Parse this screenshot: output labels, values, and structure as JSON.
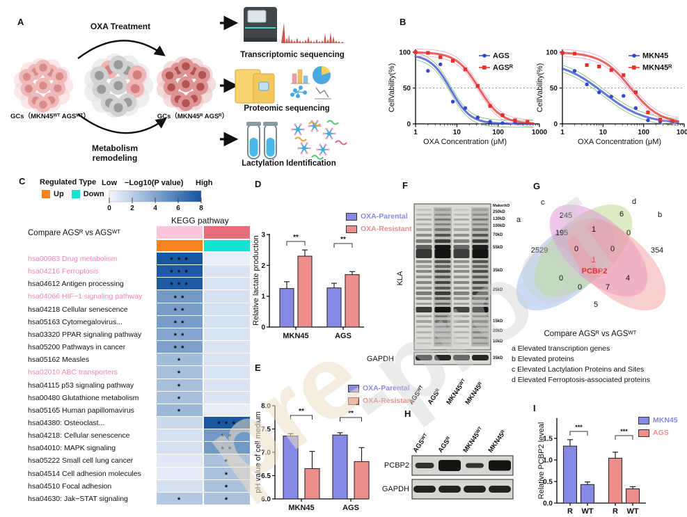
{
  "watermark": {
    "part1": "pre",
    "part2": "-proof"
  },
  "colors": {
    "parental_fill": "#8789e6",
    "resistant_fill": "#ee8e8c",
    "bar_border": "#2a2a2a",
    "blue_series": "#3347cf",
    "red_series": "#e62f2b",
    "blue_band": "#6fbf73",
    "red_band": "#f2a3cf",
    "pink_label": "#f685b9",
    "up_orange": "#f8831f",
    "down_cyan": "#17e2d2",
    "heat_low": "#f4f7fd",
    "heat_high": "#13539f",
    "header_pink": "#f9c6dc",
    "header_rose": "#e66d79",
    "venn_a": "#9bb9ee",
    "venn_b": "#f19d9d",
    "venn_c": "#bcd889",
    "venn_d": "#dd8fd6",
    "venn_center_red": "#e62f2b"
  },
  "panel_a": {
    "label": "A",
    "oxa": "OXA Treatment",
    "metabolism": "Metabolism remodeling",
    "gcs_wt": "GCs（MKN45ᵂᵀ AGSᵂᵀ）",
    "gcs_r": "GCs（MKN45ᴿ AGSᴿ）",
    "transcriptomic": "Transcriptomic sequencing",
    "proteomic": "Proteomic sequencing",
    "lactylation": "Lactylation Identification"
  },
  "panel_b": {
    "label": "B"
  },
  "panel_c": {
    "label": "C",
    "regulated_type": "Regulated Type",
    "up": "Up",
    "down": "Down",
    "low": "Low",
    "scale_label": "−Log10(P value)",
    "high": "High",
    "scale_ticks": [
      "0",
      "2",
      "4",
      "6",
      "8"
    ],
    "kegg_title": "KEGG pathway",
    "compare": "Compare AGSᴿ vs AGSᵂᵀ"
  },
  "panel_d": {
    "label": "D"
  },
  "panel_e": {
    "label": "E"
  },
  "panel_f": {
    "label": "F",
    "protein": "KLA",
    "loading": "GAPDH",
    "marker_header": "Maker/kD",
    "markers": [
      "250kD",
      "130kD",
      "100kD",
      "70kD",
      "55kD",
      "35kD",
      "25kD",
      "15kD",
      "20kD",
      "10kD"
    ],
    "loading_marker": "35kD",
    "lanes": [
      "AGSᵂᵀ",
      "AGSᴿ",
      "MKN45ᵂᵀ",
      "MKN45ᴿ"
    ]
  },
  "panel_g": {
    "label": "G",
    "sets": {
      "a": "a",
      "b": "b",
      "c": "c",
      "d": "d"
    },
    "compare": "Compare AGSᴿ vs AGSᵂᵀ",
    "legend": [
      "a  Elevated transcription genes",
      "b  Elevated proteins",
      "c  Elevated Lactylation Proteins and Sites",
      "d  Elevated Ferroptosis-associated proteins"
    ]
  },
  "panel_h": {
    "label": "H",
    "protein": "PCBP2",
    "loading": "GAPDH",
    "lanes": [
      "AGSᵂᵀ",
      "AGSᴿ",
      "MKN45ᵂᵀ",
      "MKN45ᴿ"
    ]
  },
  "panel_i": {
    "label": "I"
  },
  "chart_data": {
    "ags_viability": {
      "type": "scatter",
      "xlabel": "OXA Concentration (μM)",
      "ylabel": "CellVability(%)",
      "xscale": "log",
      "xlim": [
        1,
        1000
      ],
      "ylim": [
        0,
        100
      ],
      "yticks": [
        0,
        50,
        100
      ],
      "xticks": [
        1,
        10,
        100,
        1000
      ],
      "refline_y": 50,
      "series": [
        {
          "name": "AGS",
          "marker": "circle",
          "ic50": 7,
          "hill": 1.8,
          "top": 97,
          "bottom": 0,
          "points": [
            [
              1,
              100
            ],
            [
              2,
              74
            ],
            [
              4,
              83
            ],
            [
              8,
              31
            ],
            [
              16,
              22
            ],
            [
              32,
              9
            ],
            [
              64,
              3
            ],
            [
              128,
              1
            ],
            [
              256,
              1
            ],
            [
              512,
              2
            ]
          ]
        },
        {
          "name": "AGSᴿ",
          "marker": "square",
          "ic50": 34,
          "hill": 1.6,
          "top": 100,
          "bottom": 0,
          "points": [
            [
              1,
              100
            ],
            [
              2,
              99
            ],
            [
              4,
              93
            ],
            [
              8,
              88
            ],
            [
              16,
              76
            ],
            [
              32,
              53
            ],
            [
              64,
              25
            ],
            [
              128,
              12
            ],
            [
              256,
              5
            ],
            [
              512,
              3
            ]
          ]
        }
      ]
    },
    "mkn45_viability": {
      "type": "scatter",
      "xlabel": "OXA Concentration (μM)",
      "ylabel": "CellVability(%)",
      "xscale": "log",
      "xlim": [
        1,
        1000
      ],
      "ylim": [
        0,
        100
      ],
      "yticks": [
        0,
        50,
        100
      ],
      "xticks": [
        1,
        10,
        100,
        1000
      ],
      "refline_y": 50,
      "series": [
        {
          "name": "MKN45",
          "marker": "circle",
          "ic50": 10,
          "hill": 0.85,
          "top": 88,
          "bottom": 0,
          "points": [
            [
              1,
              99
            ],
            [
              2,
              74
            ],
            [
              4,
              55
            ],
            [
              8,
              44
            ],
            [
              16,
              38
            ],
            [
              32,
              39
            ],
            [
              64,
              22
            ],
            [
              128,
              5
            ],
            [
              256,
              3
            ],
            [
              512,
              2
            ]
          ]
        },
        {
          "name": "MKN45ᴿ",
          "marker": "square",
          "ic50": 48,
          "hill": 1.2,
          "top": 100,
          "bottom": 0,
          "points": [
            [
              1,
              99
            ],
            [
              2,
              98
            ],
            [
              4,
              82
            ],
            [
              8,
              80
            ],
            [
              16,
              75
            ],
            [
              32,
              68
            ],
            [
              64,
              44
            ],
            [
              128,
              16
            ],
            [
              256,
              6
            ],
            [
              512,
              4
            ]
          ]
        }
      ]
    },
    "lactate": {
      "type": "bar",
      "ylabel": "Relative lactate production",
      "ylim": [
        0,
        3
      ],
      "yticks": [
        0,
        1,
        2,
        3
      ],
      "groups": [
        "MKN45",
        "AGS"
      ],
      "series": [
        {
          "name": "OXA-Parental",
          "values": [
            1.25,
            1.27
          ],
          "errors": [
            0.22,
            0.15
          ]
        },
        {
          "name": "OXA-Resistant",
          "values": [
            2.3,
            1.7
          ],
          "errors": [
            0.2,
            0.1
          ]
        }
      ],
      "significance": [
        "**",
        "**"
      ]
    },
    "ph_medium": {
      "type": "bar",
      "ylabel": "pH value of cell medium",
      "ylim": [
        6.0,
        8.0
      ],
      "yticks": [
        6.0,
        6.5,
        7.0,
        7.5,
        8.0
      ],
      "groups": [
        "MKN45",
        "AGS"
      ],
      "series": [
        {
          "name": "OXA-Parental",
          "values": [
            7.35,
            7.37
          ],
          "errors": [
            0.05,
            0.05
          ]
        },
        {
          "name": "OXA-Resistant",
          "values": [
            6.65,
            6.8
          ],
          "errors": [
            0.37,
            0.3
          ]
        }
      ],
      "significance": [
        "**",
        "**"
      ]
    },
    "pcbp2_level": {
      "type": "bar",
      "ylabel": "Relative PCBP2 leveal",
      "ylim": [
        0,
        1.78
      ],
      "yticks": [
        0.0,
        0.5,
        1.0,
        1.5
      ],
      "categories": [
        "R",
        "WT",
        "R",
        "WT"
      ],
      "values": [
        1.32,
        0.43,
        1.04,
        0.33
      ],
      "errors": [
        0.15,
        0.06,
        0.14,
        0.05
      ],
      "legend": [
        {
          "label": "MKN45"
        },
        {
          "label": "AGS"
        }
      ],
      "significance": [
        {
          "pair": [
            0,
            1
          ],
          "stars": "***"
        },
        {
          "pair": [
            2,
            3
          ],
          "stars": "***"
        }
      ]
    },
    "kegg_heatmap": {
      "type": "heatmap",
      "scale_range": [
        0,
        8
      ],
      "rows": [
        {
          "label": "hsa00983 Drug metabolism",
          "pink": true,
          "values": [
            7.8,
            0.4
          ],
          "stars": [
            "***",
            ""
          ]
        },
        {
          "label": "hsa04216 Ferroptosis",
          "pink": true,
          "values": [
            7.6,
            0.9
          ],
          "stars": [
            "***",
            ""
          ]
        },
        {
          "label": "hsa04612 Antigen processing",
          "pink": false,
          "values": [
            7.6,
            0.9
          ],
          "stars": [
            "***",
            ""
          ]
        },
        {
          "label": "hsa04066 HIF−1 signaling pathway",
          "pink": true,
          "values": [
            4.6,
            1.1
          ],
          "stars": [
            "**",
            ""
          ]
        },
        {
          "label": "hsa04218 Cellular senescence",
          "pink": false,
          "values": [
            4.4,
            1.1
          ],
          "stars": [
            "**",
            ""
          ]
        },
        {
          "label": "hsa05163 Cytomegalovirus...",
          "pink": false,
          "values": [
            4.4,
            1.1
          ],
          "stars": [
            "**",
            ""
          ]
        },
        {
          "label": "hsa03320 PPAR signaling pathway",
          "pink": false,
          "values": [
            4.0,
            0.9
          ],
          "stars": [
            "**",
            ""
          ]
        },
        {
          "label": "hsa05200 Pathways in cancer",
          "pink": false,
          "values": [
            4.2,
            0.9
          ],
          "stars": [
            "**",
            ""
          ]
        },
        {
          "label": "hsa05162 Measles",
          "pink": false,
          "values": [
            2.9,
            0.9
          ],
          "stars": [
            "*",
            ""
          ]
        },
        {
          "label": "hsa02010 ABC transporters",
          "pink": true,
          "values": [
            2.7,
            0.9
          ],
          "stars": [
            "*",
            ""
          ]
        },
        {
          "label": "hsa04115 p53 signaling pathway",
          "pink": false,
          "values": [
            2.7,
            0.9
          ],
          "stars": [
            "*",
            ""
          ]
        },
        {
          "label": "hsa00480 Glutathione metabolism",
          "pink": false,
          "values": [
            2.7,
            0.9
          ],
          "stars": [
            "*",
            ""
          ]
        },
        {
          "label": "hsa05165 Human papillomavirus",
          "pink": false,
          "values": [
            3.1,
            0.5
          ],
          "stars": [
            "*",
            ""
          ]
        },
        {
          "label": "hsa04380: Osteoclast...",
          "pink": false,
          "values": [
            1.4,
            7.8
          ],
          "stars": [
            "",
            "***"
          ]
        },
        {
          "label": "hsa04218: Cellular senescence",
          "pink": false,
          "values": [
            1.1,
            4.6
          ],
          "stars": [
            "",
            "**"
          ]
        },
        {
          "label": "hsa04010: MAPK signaling",
          "pink": false,
          "values": [
            1.1,
            4.6
          ],
          "stars": [
            "",
            "**"
          ]
        },
        {
          "label": "hsa05222 Small cell lung cancer",
          "pink": false,
          "values": [
            0.7,
            2.6
          ],
          "stars": [
            "",
            "*"
          ]
        },
        {
          "label": "hsa04514 Cell adhesion molecules",
          "pink": false,
          "values": [
            0.6,
            2.6
          ],
          "stars": [
            "",
            "*"
          ]
        },
        {
          "label": "hsa04510 Focal adhesion",
          "pink": false,
          "values": [
            1.1,
            2.6
          ],
          "stars": [
            "",
            "*"
          ]
        },
        {
          "label": "hsa04630: Jak−STAT signaling",
          "pink": false,
          "values": [
            2.3,
            2.6
          ],
          "stars": [
            "*",
            "*"
          ]
        }
      ]
    },
    "venn": {
      "type": "venn4",
      "gene": "PCBP2",
      "regions": [
        {
          "k": "a",
          "v": "2529"
        },
        {
          "k": "c",
          "v": "245"
        },
        {
          "k": "d",
          "v": "6"
        },
        {
          "k": "b",
          "v": "354"
        },
        {
          "k": "ac",
          "v": "195"
        },
        {
          "k": "cd",
          "v": "1"
        },
        {
          "k": "db",
          "v": "0"
        },
        {
          "k": "acd",
          "v": "0"
        },
        {
          "k": "cdb",
          "v": "0"
        },
        {
          "k": "abcd",
          "v": "1"
        },
        {
          "k": "ad",
          "v": "0"
        },
        {
          "k": "cb",
          "v": "4"
        },
        {
          "k": "adb",
          "v": "0"
        },
        {
          "k": "acb",
          "v": "7"
        },
        {
          "k": "ab",
          "v": "5"
        }
      ]
    }
  }
}
